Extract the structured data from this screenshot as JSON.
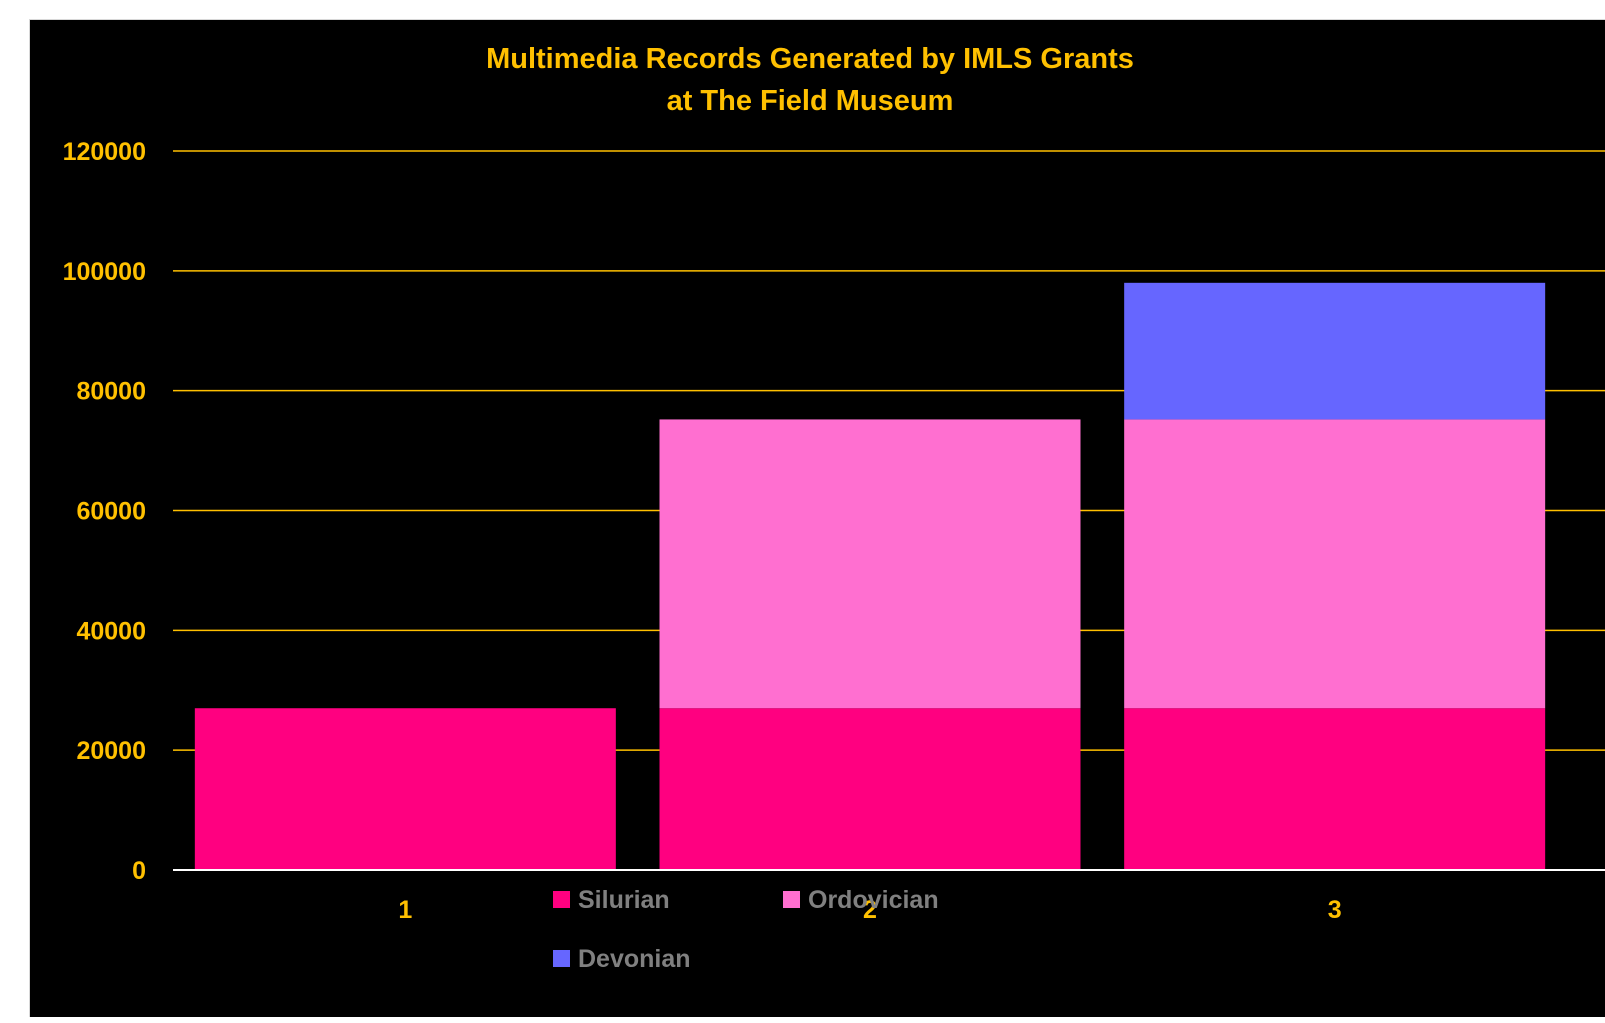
{
  "chart_data": {
    "type": "bar",
    "stacked": true,
    "title_lines": [
      "Multimedia Records Generated by IMLS Grants",
      "at The Field Museum"
    ],
    "categories": [
      "1",
      "2",
      "3"
    ],
    "series": [
      {
        "name": "Silurian",
        "color": "#ff0080",
        "values": [
          27000,
          27000,
          27000
        ]
      },
      {
        "name": "Ordovician",
        "color": "#ff6fd0",
        "values": [
          0,
          48200,
          48200
        ]
      },
      {
        "name": "Devonian",
        "color": "#6666ff",
        "values": [
          0,
          0,
          22800
        ]
      }
    ],
    "ylim": [
      0,
      120000
    ],
    "yticks": [
      "0",
      "20000",
      "40000",
      "60000",
      "80000",
      "100000",
      "120000"
    ],
    "grid": true,
    "legend_position": "bottom",
    "colors": {
      "background": "#000000",
      "text": "#ffc000",
      "gridline": "#ffc000",
      "axis": "#ffffff",
      "legend_text": "#808080"
    }
  }
}
